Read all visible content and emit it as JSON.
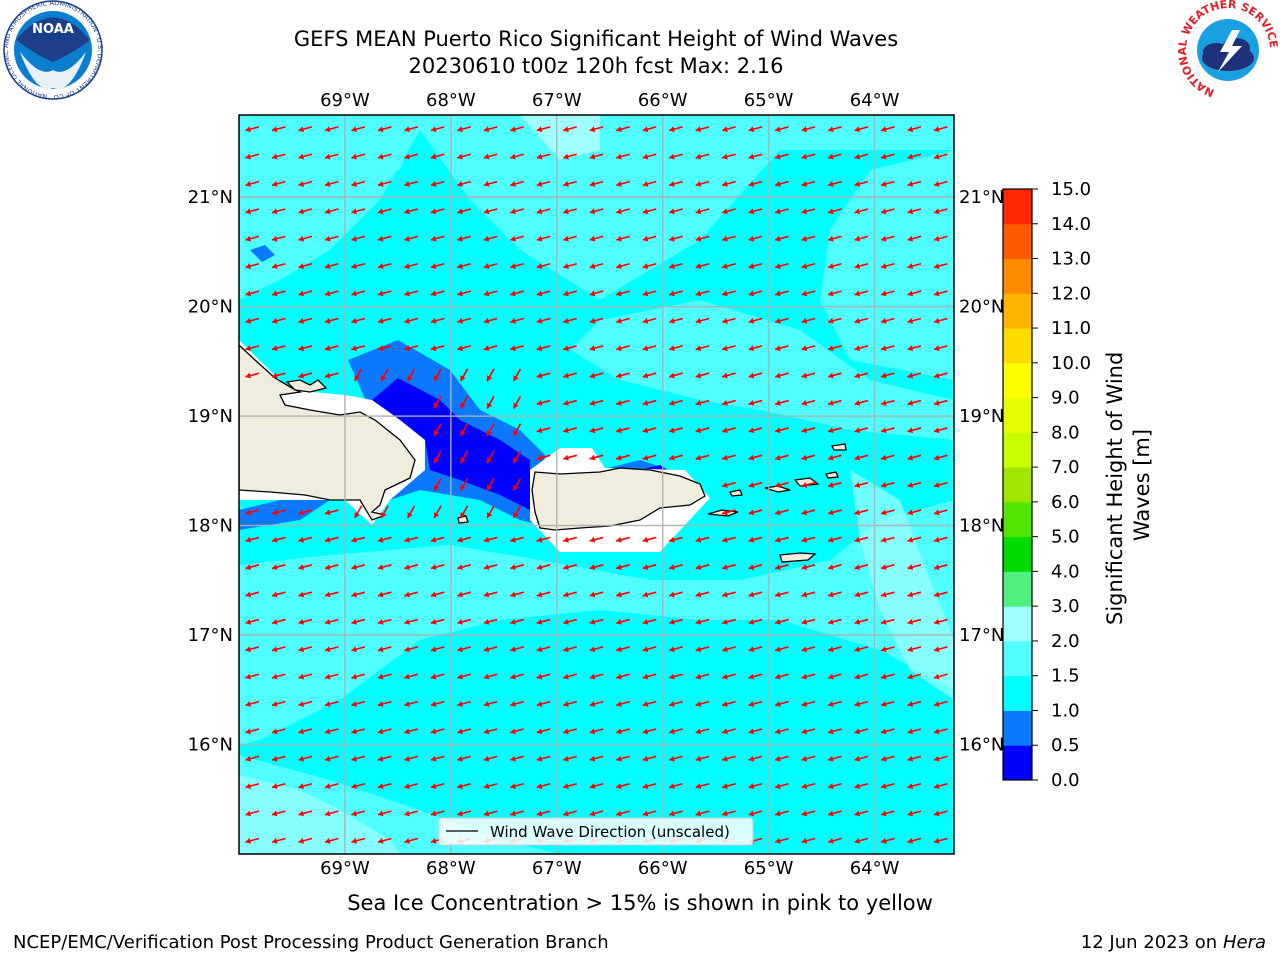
{
  "title": {
    "line1": "GEFS MEAN Puerto Rico Significant Height of Wind Waves",
    "line2": "20230610 t00z 120h fcst   Max: 2.16"
  },
  "map": {
    "lon_ticks": [
      "69°W",
      "68°W",
      "67°W",
      "66°W",
      "65°W",
      "64°W"
    ],
    "lon_values": [
      -69,
      -68,
      -67,
      -66,
      -65,
      -64
    ],
    "lat_ticks": [
      "21°N",
      "20°N",
      "19°N",
      "18°N",
      "17°N",
      "16°N"
    ],
    "lat_values": [
      21,
      20,
      19,
      18,
      17,
      16
    ],
    "lon_range": [
      -70.0,
      -63.25
    ],
    "lat_range": [
      15.0,
      21.75
    ],
    "legend_label": "Wind Wave Direction (unscaled)",
    "legend_placement": "bottom-center",
    "arrow_color": "#ff0000",
    "land_color": "#efedde",
    "grid": true,
    "wind_direction": "from east-northeast toward west-southwest"
  },
  "colorbar": {
    "label": "Significant Height of Wind Waves [m]",
    "tick_labels": [
      "0.0",
      "0.5",
      "1.0",
      "1.5",
      "2.0",
      "3.0",
      "4.0",
      "5.0",
      "6.0",
      "7.0",
      "8.0",
      "9.0",
      "10.0",
      "11.0",
      "12.0",
      "13.0",
      "14.0",
      "15.0"
    ],
    "colors": [
      "#0000ff",
      "#0a78ff",
      "#00ffff",
      "#50ffff",
      "#a0ffff",
      "#50f080",
      "#00dc00",
      "#50e600",
      "#a0e600",
      "#c8ff00",
      "#e6ff00",
      "#ffff00",
      "#ffdc00",
      "#ffb400",
      "#ff8c00",
      "#ff5a00",
      "#ff2800"
    ]
  },
  "caption": "Sea Ice Concentration > 15% is shown in pink to yellow",
  "footer": {
    "left": "NCEP/EMC/Verification Post Processing Product Generation Branch",
    "right_prefix": "12 Jun 2023 on",
    "right_machine": "Hera"
  },
  "logos": {
    "left": "noaa-logo",
    "left_ring_text": "NATIONAL OCEANIC AND ATMOSPHERIC ADMINISTRATION · U.S. DEPARTMENT OF COMMERCE",
    "right": "nws-logo",
    "right_ring_text": "NATIONAL WEATHER SERVICE"
  }
}
